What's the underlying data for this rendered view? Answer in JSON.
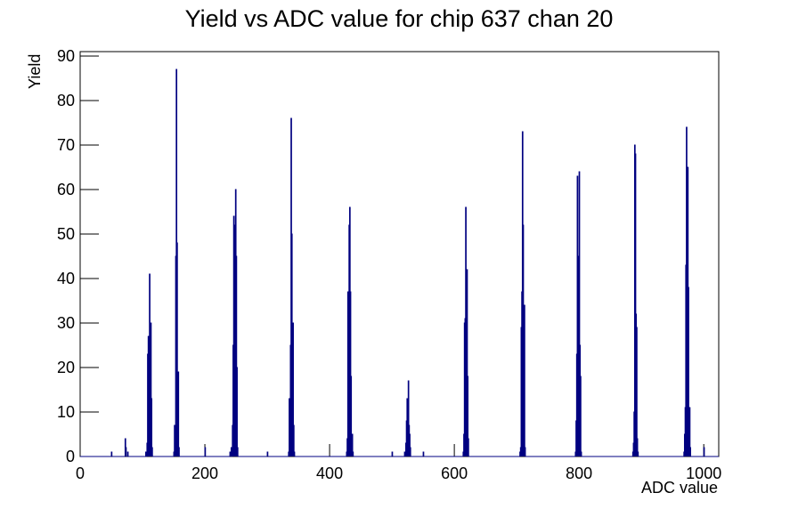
{
  "chart_data": {
    "type": "histogram",
    "title": "Yield vs ADC value for chip 637 chan 20",
    "x_label": "ADC value",
    "y_label": "Yield",
    "bins": [
      0,
      50,
      51,
      72,
      73,
      74,
      76,
      77,
      105,
      106,
      107,
      108,
      109,
      110,
      111,
      112,
      113,
      114,
      115,
      116,
      150,
      151,
      152,
      153,
      154,
      155,
      156,
      157,
      158,
      159,
      200,
      201,
      240,
      241,
      242,
      243,
      244,
      245,
      246,
      247,
      248,
      249,
      250,
      251,
      252,
      253,
      300,
      301,
      334,
      335,
      336,
      337,
      338,
      339,
      340,
      341,
      342,
      343,
      344,
      427,
      428,
      429,
      430,
      431,
      432,
      433,
      434,
      435,
      436,
      437,
      438,
      500,
      501,
      520,
      521,
      522,
      523,
      524,
      525,
      526,
      527,
      528,
      529,
      530,
      550,
      551,
      614,
      615,
      616,
      617,
      618,
      619,
      620,
      621,
      622,
      623,
      705,
      706,
      707,
      708,
      709,
      710,
      711,
      712,
      713,
      714,
      794,
      795,
      796,
      797,
      798,
      799,
      800,
      801,
      802,
      803,
      804,
      886,
      887,
      888,
      889,
      890,
      891,
      892,
      893,
      894,
      895,
      968,
      969,
      970,
      971,
      972,
      973,
      974,
      975,
      976,
      977,
      978,
      979,
      1000,
      1001,
      1024
    ],
    "values": [
      0,
      1,
      0,
      4,
      2,
      0,
      1,
      0,
      1,
      0,
      3,
      23,
      27,
      11,
      41,
      22,
      30,
      13,
      2,
      0,
      1,
      7,
      3,
      45,
      87,
      48,
      17,
      19,
      2,
      0,
      2,
      0,
      1,
      0,
      2,
      0,
      7,
      25,
      54,
      34,
      52,
      60,
      45,
      20,
      2,
      0,
      1,
      0,
      1,
      13,
      12,
      25,
      76,
      50,
      25,
      30,
      7,
      1,
      0,
      1,
      4,
      37,
      12,
      52,
      56,
      37,
      18,
      3,
      5,
      1,
      0,
      1,
      0,
      1,
      0,
      3,
      8,
      13,
      9,
      17,
      7,
      5,
      2,
      0,
      1,
      0,
      1,
      5,
      30,
      31,
      56,
      42,
      42,
      18,
      4,
      0,
      1,
      2,
      29,
      37,
      73,
      52,
      33,
      34,
      2,
      0,
      1,
      8,
      23,
      63,
      39,
      45,
      64,
      25,
      18,
      1,
      0,
      1,
      3,
      10,
      70,
      68,
      32,
      29,
      4,
      1,
      0,
      1,
      5,
      11,
      43,
      74,
      34,
      65,
      38,
      11,
      11,
      2,
      0,
      2,
      0
    ],
    "color": "#000080",
    "xlim": [
      0,
      1024
    ],
    "xticks": [
      0,
      200,
      400,
      600,
      800,
      1000
    ],
    "ylim": [
      0,
      91
    ],
    "yticks": [
      0,
      10,
      20,
      30,
      40,
      50,
      60,
      70,
      80,
      90
    ]
  }
}
